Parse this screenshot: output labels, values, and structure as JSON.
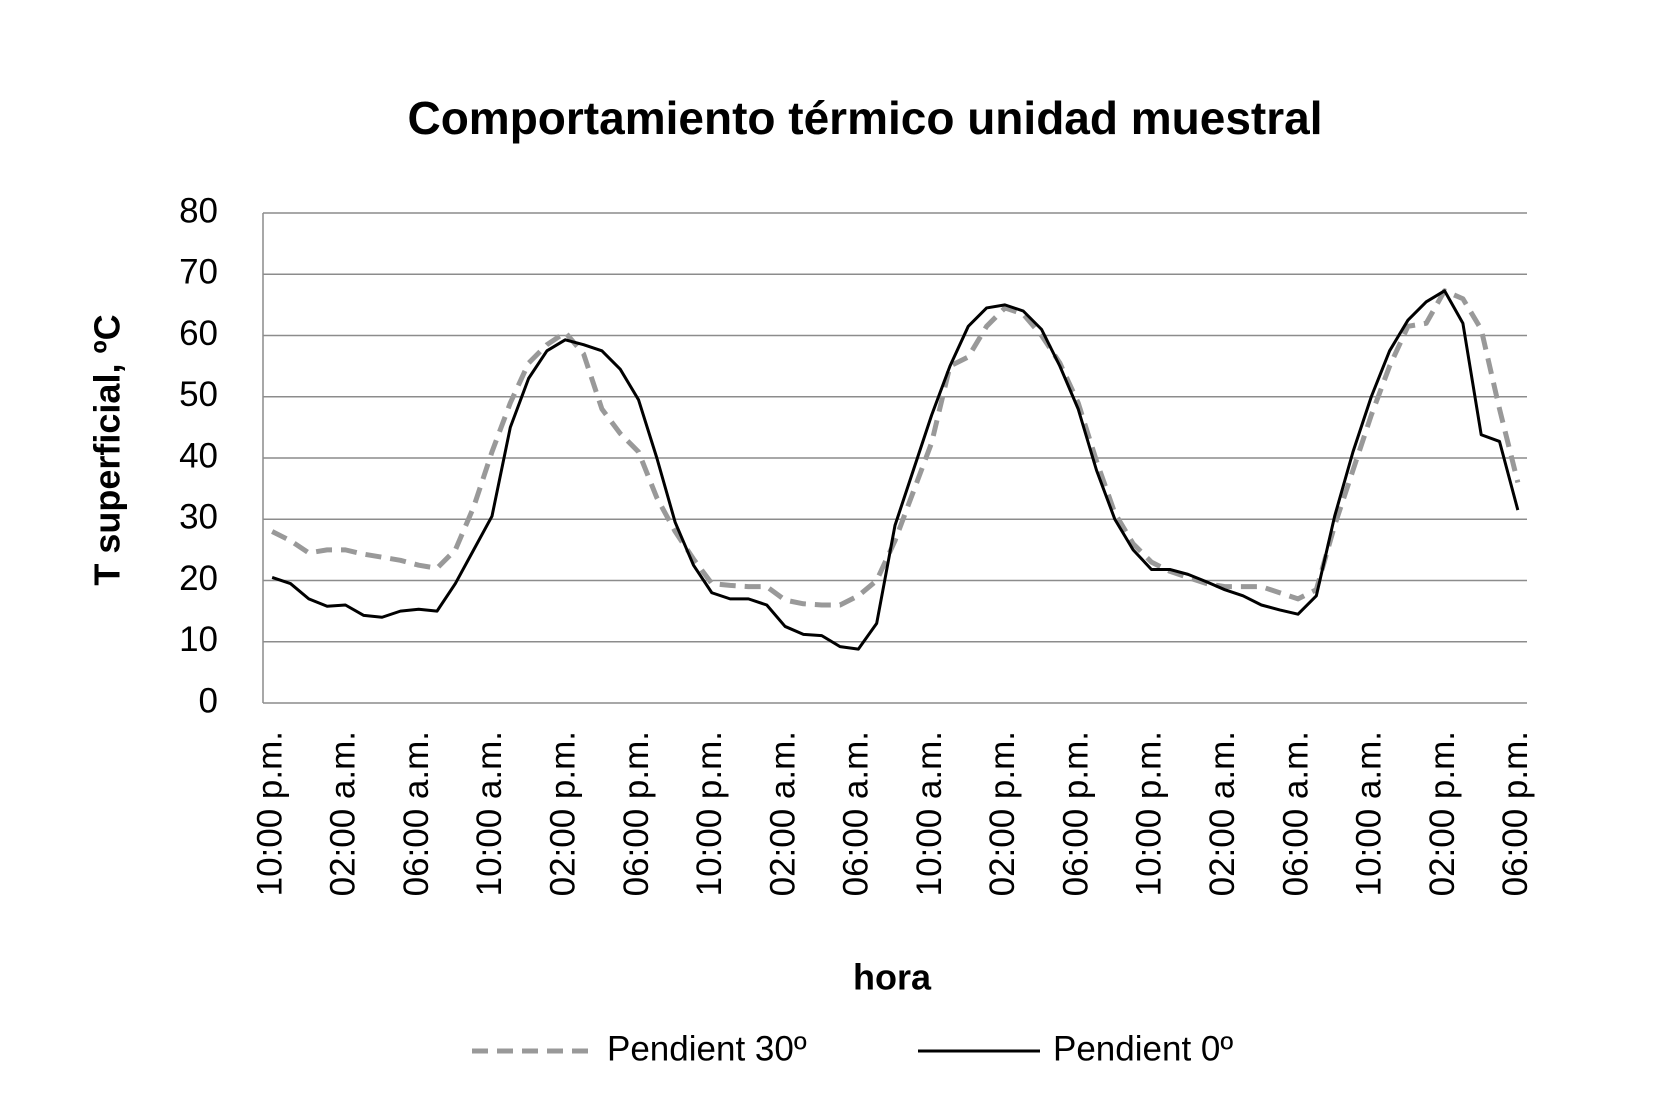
{
  "chart_data": {
    "type": "line",
    "title": "Comportamiento térmico unidad muestral",
    "x_label": "hora",
    "y_label": "T superficial, ºC",
    "categories": [
      "10:00 p.m.",
      null,
      null,
      null,
      "02:00 a.m.",
      null,
      null,
      null,
      "06:00 a.m.",
      null,
      null,
      null,
      "10:00 a.m.",
      null,
      null,
      null,
      "02:00 p.m.",
      null,
      null,
      null,
      "06:00 p.m.",
      null,
      null,
      null,
      "10:00 p.m.",
      null,
      null,
      null,
      "02:00 a.m.",
      null,
      null,
      null,
      "06:00 a.m.",
      null,
      null,
      null,
      "10:00 a.m.",
      null,
      null,
      null,
      "02:00 p.m.",
      null,
      null,
      null,
      "06:00 p.m.",
      null,
      null,
      null,
      "10:00 p.m.",
      null,
      null,
      null,
      "02:00 a.m.",
      null,
      null,
      null,
      "06:00 a.m.",
      null,
      null,
      null,
      "10:00 a.m.",
      null,
      null,
      null,
      "02:00 p.m.",
      null,
      null,
      null,
      "06:00 p.m."
    ],
    "series": [
      {
        "name": "Pendient 30º",
        "color": "#999999",
        "dashed": true,
        "values": [
          28,
          26.5,
          24.5,
          25,
          25,
          24.3,
          23.8,
          23.3,
          22.5,
          22,
          25,
          32,
          41,
          49,
          55.5,
          58.5,
          60.5,
          57,
          48,
          44,
          41,
          33.5,
          28,
          23.5,
          19.5,
          19.2,
          19,
          19,
          16.8,
          16.2,
          16,
          16,
          17.5,
          20,
          26.5,
          34.5,
          42.5,
          55,
          56.5,
          61.5,
          64.5,
          63.5,
          60,
          55.5,
          49,
          39.5,
          31,
          26,
          23,
          21.5,
          20.5,
          19.5,
          19,
          19,
          19,
          18,
          17,
          18.5,
          29,
          38,
          47,
          55,
          61.5,
          62,
          67.3,
          66,
          61,
          48,
          36
        ]
      },
      {
        "name": "Pendient 0º",
        "color": "#000000",
        "dashed": false,
        "values": [
          20.5,
          19.5,
          17,
          15.8,
          16,
          14.3,
          14,
          15,
          15.3,
          15,
          19.5,
          25,
          30.5,
          45,
          53,
          57.5,
          59.3,
          58.5,
          57.5,
          54.5,
          49.5,
          40,
          29.5,
          22.5,
          18,
          17,
          17,
          16,
          12.5,
          11.2,
          11,
          9.2,
          8.8,
          13,
          29,
          38,
          47,
          55,
          61.5,
          64.5,
          65,
          64,
          61,
          55,
          48,
          38,
          30,
          25,
          21.8,
          21.8,
          21,
          19.8,
          18.5,
          17.5,
          16,
          15.2,
          14.5,
          17.5,
          30.5,
          41,
          50,
          57.5,
          62.5,
          65.5,
          67.3,
          62,
          43.8,
          42.7,
          31.5
        ]
      }
    ],
    "ylim": [
      0,
      80
    ],
    "yticks": [
      0,
      10,
      20,
      30,
      40,
      50,
      60,
      70,
      80
    ],
    "grid": true
  }
}
